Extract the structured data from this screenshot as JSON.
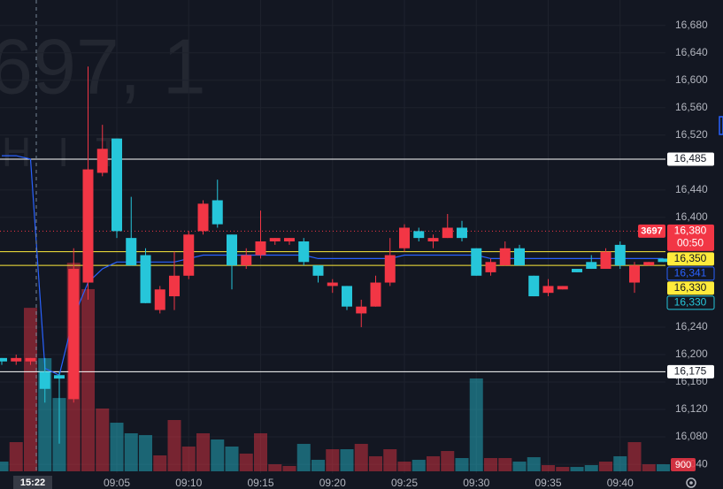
{
  "chart_data": {
    "type": "candlestick",
    "watermark": {
      "title": "697, 1",
      "subtitle": "HIT"
    },
    "crosshair_time": "15:22",
    "categories": [
      null,
      null,
      null,
      null,
      null,
      null,
      null,
      null,
      "09:05",
      null,
      null,
      null,
      null,
      "09:10",
      null,
      null,
      null,
      null,
      "09:15",
      null,
      null,
      null,
      null,
      "09:20",
      null,
      null,
      null,
      null,
      "09:25",
      null,
      null,
      null,
      null,
      "09:30",
      null,
      null,
      null,
      null,
      "09:35",
      null,
      null,
      null,
      null,
      "09:40",
      null,
      null,
      null
    ],
    "open": [
      16195,
      16190,
      16190,
      16175,
      16170,
      16135,
      16305,
      16465,
      16515,
      16370,
      16345,
      16265,
      16285,
      16315,
      16380,
      16425,
      16375,
      16330,
      16345,
      16365,
      16365,
      16365,
      16330,
      16300,
      16300,
      16260,
      16270,
      16305,
      16355,
      16380,
      16365,
      16370,
      16385,
      16355,
      16320,
      16330,
      16355,
      16315,
      16290,
      16295,
      16325,
      16335,
      16325,
      16360,
      16305,
      16330,
      16340
    ],
    "high": [
      16195,
      16200,
      16195,
      16195,
      16175,
      16355,
      16620,
      16535,
      16515,
      16430,
      16355,
      16300,
      16350,
      16380,
      16425,
      16455,
      16375,
      16355,
      16410,
      16370,
      16370,
      16370,
      16330,
      16310,
      16300,
      16280,
      16315,
      16370,
      16390,
      16385,
      16375,
      16405,
      16395,
      16355,
      16340,
      16365,
      16360,
      16315,
      16310,
      16300,
      16325,
      16345,
      16355,
      16365,
      16335,
      16335,
      16340
    ],
    "low": [
      16185,
      16185,
      16185,
      16130,
      16070,
      16130,
      16280,
      16460,
      16370,
      16330,
      16275,
      16260,
      16265,
      16310,
      16375,
      16385,
      16295,
      16325,
      16340,
      16360,
      16360,
      16330,
      16305,
      16290,
      16265,
      16240,
      16270,
      16300,
      16350,
      16365,
      16355,
      16370,
      16365,
      16315,
      16315,
      16330,
      16330,
      16285,
      16285,
      16295,
      16320,
      16325,
      16325,
      16325,
      16290,
      16330,
      16335
    ],
    "close": [
      16190,
      16195,
      16195,
      16150,
      16165,
      16325,
      16470,
      16500,
      16380,
      16330,
      16275,
      16295,
      16315,
      16375,
      16420,
      16390,
      16330,
      16345,
      16365,
      16370,
      16370,
      16335,
      16315,
      16305,
      16270,
      16270,
      16305,
      16345,
      16385,
      16370,
      16370,
      16385,
      16370,
      16315,
      16335,
      16355,
      16330,
      16285,
      16300,
      16300,
      16320,
      16325,
      16350,
      16330,
      16330,
      16335,
      16335
    ],
    "volume": [
      1240,
      3720,
      20850,
      14430,
      9350,
      26600,
      23240,
      8010,
      6200,
      4850,
      4620,
      2030,
      6540,
      3160,
      4850,
      4060,
      3160,
      2260,
      4850,
      900,
      680,
      3500,
      1470,
      2820,
      2820,
      3500,
      1920,
      2820,
      1240,
      1470,
      1920,
      2590,
      1690,
      11840,
      1690,
      1690,
      1240,
      1800,
      790,
      560,
      560,
      790,
      1240,
      1920,
      3720,
      900,
      900
    ],
    "ma": {
      "color": "#2962ff",
      "values": [
        16490,
        16490,
        16485,
        16180,
        16170,
        16255,
        16305,
        16325,
        16335,
        16335,
        16335,
        16335,
        16335,
        16340,
        16345,
        16345,
        16345,
        16345,
        16345,
        16345,
        16345,
        16345,
        16340,
        16340,
        16340,
        16340,
        16340,
        16340,
        16345,
        16345,
        16345,
        16345,
        16345,
        16345,
        16340,
        16340,
        16340,
        16340,
        16340,
        16340,
        16340,
        16340,
        16340,
        16340,
        16340,
        16340,
        16340
      ]
    },
    "up_color": "#f23645",
    "down_color": "#26c6da",
    "ylim": [
      16004,
      16717
    ],
    "yticks": [
      {
        "value": 16680,
        "label": "16,680"
      },
      {
        "value": 16640,
        "label": "16,640"
      },
      {
        "value": 16600,
        "label": "16,600"
      },
      {
        "value": 16560,
        "label": "16,560"
      },
      {
        "value": 16520,
        "label": "16,520"
      },
      {
        "value": 16440,
        "label": "16,440"
      },
      {
        "value": 16400,
        "label": "16,400"
      },
      {
        "value": 16240,
        "label": "16,240"
      },
      {
        "value": 16200,
        "label": "16,200"
      },
      {
        "value": 16160,
        "label": "16,160"
      },
      {
        "value": 16120,
        "label": "16,120"
      },
      {
        "value": 16080,
        "label": "16,080"
      },
      {
        "value": 16040,
        "label": "16,040"
      }
    ],
    "vlim": [
      0,
      30000
    ],
    "grid": true,
    "price_lines": [
      {
        "value": 16485,
        "label": "16,485",
        "color": "#ffffff"
      },
      {
        "value": 16175,
        "label": "16,175",
        "color": "#ffffff"
      },
      {
        "value": 16350,
        "label": "16,350",
        "color": "#ffeb3b"
      },
      {
        "value": 16330,
        "label": "16,330",
        "color": "#ffeb3b"
      }
    ],
    "last_price": {
      "value": 16380,
      "label": "16,380",
      "countdown": "00:50",
      "tag": "3697"
    },
    "ma_label": {
      "value": 16341,
      "label": "16,341"
    },
    "close_label": {
      "value": 16330,
      "label": "16,330"
    }
  }
}
